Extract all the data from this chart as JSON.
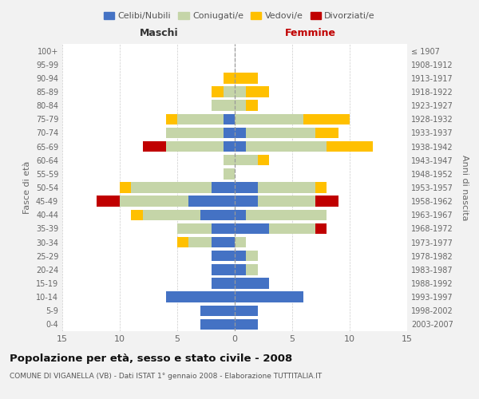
{
  "age_groups": [
    "100+",
    "95-99",
    "90-94",
    "85-89",
    "80-84",
    "75-79",
    "70-74",
    "65-69",
    "60-64",
    "55-59",
    "50-54",
    "45-49",
    "40-44",
    "35-39",
    "30-34",
    "25-29",
    "20-24",
    "15-19",
    "10-14",
    "5-9",
    "0-4"
  ],
  "birth_years": [
    "≤ 1907",
    "1908-1912",
    "1913-1917",
    "1918-1922",
    "1923-1927",
    "1928-1932",
    "1933-1937",
    "1938-1942",
    "1943-1947",
    "1948-1952",
    "1953-1957",
    "1958-1962",
    "1963-1967",
    "1968-1972",
    "1973-1977",
    "1978-1982",
    "1983-1987",
    "1988-1992",
    "1993-1997",
    "1998-2002",
    "2003-2007"
  ],
  "male_celibi": [
    0,
    0,
    0,
    0,
    0,
    1,
    1,
    1,
    0,
    0,
    2,
    4,
    3,
    2,
    2,
    2,
    2,
    2,
    6,
    3,
    3
  ],
  "male_coniugati": [
    0,
    0,
    0,
    1,
    2,
    4,
    5,
    5,
    1,
    1,
    7,
    6,
    5,
    3,
    2,
    0,
    0,
    0,
    0,
    0,
    0
  ],
  "male_vedovi": [
    0,
    0,
    1,
    1,
    0,
    1,
    0,
    0,
    0,
    0,
    1,
    0,
    1,
    0,
    1,
    0,
    0,
    0,
    0,
    0,
    0
  ],
  "male_divorziati": [
    0,
    0,
    0,
    0,
    0,
    0,
    0,
    2,
    0,
    0,
    0,
    2,
    0,
    0,
    0,
    0,
    0,
    0,
    0,
    0,
    0
  ],
  "female_nubili": [
    0,
    0,
    0,
    0,
    0,
    0,
    1,
    1,
    0,
    0,
    2,
    2,
    1,
    3,
    0,
    1,
    1,
    3,
    6,
    2,
    2
  ],
  "female_coniugate": [
    0,
    0,
    0,
    1,
    1,
    6,
    6,
    7,
    2,
    0,
    5,
    5,
    7,
    4,
    1,
    1,
    1,
    0,
    0,
    0,
    0
  ],
  "female_vedove": [
    0,
    0,
    2,
    2,
    1,
    4,
    2,
    4,
    1,
    0,
    1,
    0,
    0,
    0,
    0,
    0,
    0,
    0,
    0,
    0,
    0
  ],
  "female_divorziate": [
    0,
    0,
    0,
    0,
    0,
    0,
    0,
    0,
    0,
    0,
    0,
    2,
    0,
    1,
    0,
    0,
    0,
    0,
    0,
    0,
    0
  ],
  "color_celibi": "#4472c4",
  "color_coniugati": "#c5d5a8",
  "color_vedovi": "#ffc000",
  "color_divorziati": "#c00000",
  "xlim": 15,
  "title": "Popolazione per età, sesso e stato civile - 2008",
  "subtitle": "COMUNE DI VIGANELLA (VB) - Dati ISTAT 1° gennaio 2008 - Elaborazione TUTTITALIA.IT",
  "ylabel_left": "Fasce di età",
  "ylabel_right": "Anni di nascita",
  "label_male": "Maschi",
  "label_female": "Femmine",
  "bg_color": "#f2f2f2",
  "plot_bg": "#ffffff",
  "legend_labels": [
    "Celibi/Nubili",
    "Coniugati/e",
    "Vedovi/e",
    "Divorziati/e"
  ]
}
